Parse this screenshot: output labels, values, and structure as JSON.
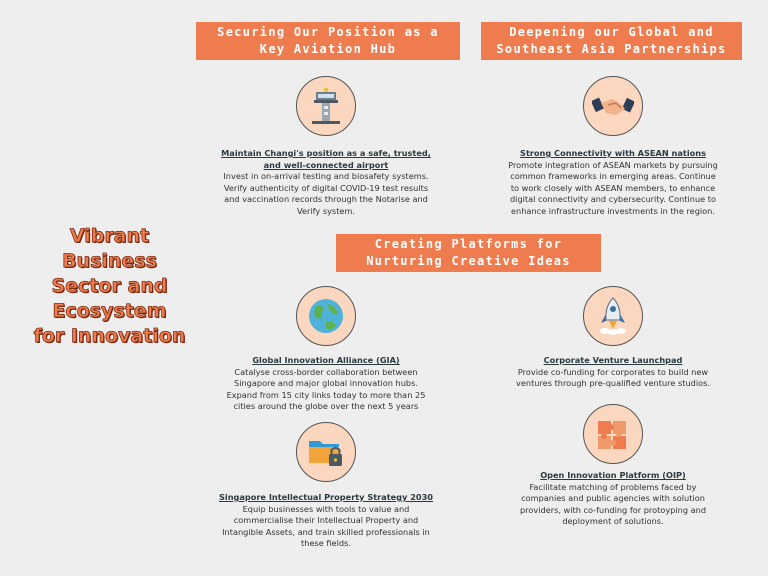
{
  "title_lines": [
    "Vibrant",
    "Business",
    "Sector and",
    "Ecosystem",
    "for Innovation"
  ],
  "banners": {
    "aviation": [
      "Securing Our Position as a",
      "Key Aviation Hub"
    ],
    "partnerships": [
      "Deepening our Global and",
      "Southeast Asia Partnerships"
    ],
    "platforms": [
      "Creating Platforms for",
      "Nurturing Creative Ideas"
    ]
  },
  "items": {
    "changi": {
      "head": [
        "Maintain Changi's position as a safe, trusted,",
        "and well-connected airport"
      ],
      "body": [
        "Invest in on-arrival testing and biosafety systems.",
        "Verify authenticity of digital COVID-19 test results",
        "and vaccination records through the Notarise and",
        "Verify system."
      ]
    },
    "asean": {
      "head": [
        "Strong Connectivity with ASEAN nations"
      ],
      "body": [
        "Promote integration of ASEAN markets by pursuing",
        "common frameworks in emerging areas. Continue",
        "to work closely with ASEAN members, to enhance",
        "digital connectivity and cybersecurity. Continue to",
        "enhance infrastructure investments in the region."
      ]
    },
    "gia": {
      "head": [
        "Global Innovation Alliance (GIA)"
      ],
      "body": [
        "Catalyse cross-border collaboration between",
        "Singapore and major global innovation hubs.",
        "Expand from 15 city links today to more than 25",
        "cities around the globe over the next 5 years"
      ]
    },
    "cvl": {
      "head": [
        "Corporate Venture Launchpad"
      ],
      "body": [
        "Provide co-funding for corporates to build new",
        "ventures through pre-qualified venture studios."
      ]
    },
    "ipstrategy": {
      "head": [
        "Singapore Intellectual Property Strategy 2030"
      ],
      "body": [
        "Equip businesses with tools to value and",
        "commercialise their Intellectual Property and",
        "Intangible Assets, and train skilled professionals in",
        "these fields."
      ]
    },
    "oip": {
      "head": [
        "Open Innovation Platform (OIP)"
      ],
      "body": [
        "Facilitate matching of problems faced by",
        "companies and public agencies with solution",
        "providers, with co-funding for protoyping and",
        "deployment of solutions."
      ]
    }
  },
  "icons": {
    "changi": "control-tower-icon",
    "asean": "handshake-icon",
    "gia": "globe-icon",
    "cvl": "rocket-icon",
    "ipstrategy": "locked-folder-icon",
    "oip": "puzzle-icon"
  },
  "colors": {
    "accent": "#ef7c4e",
    "icon_bg": "#fbd7bf",
    "background": "#eeeeee",
    "title_outline": "#7a2a10"
  }
}
